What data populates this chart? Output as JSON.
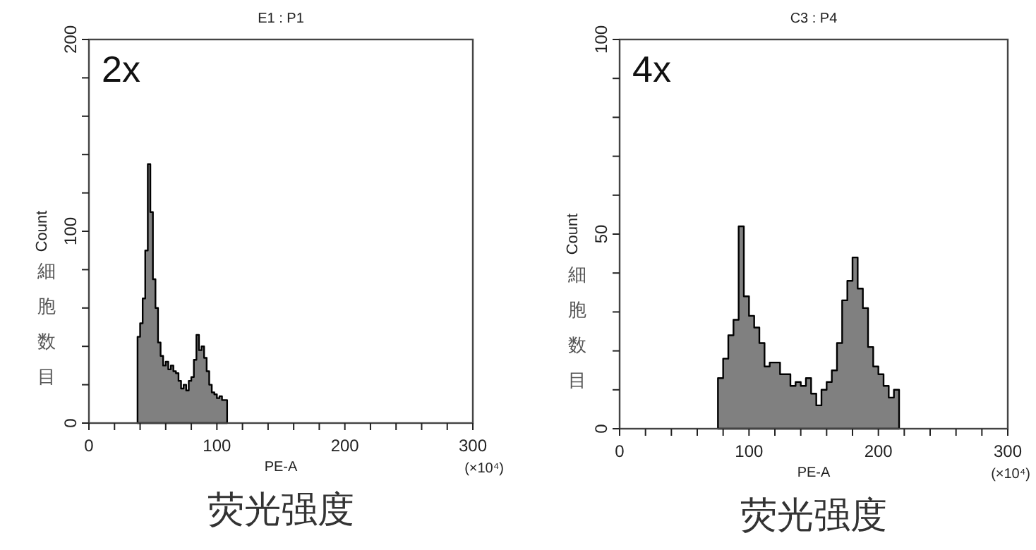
{
  "chart_data": [
    {
      "type": "histogram",
      "title": "E1 : P1",
      "xlabel": "PE-A",
      "ylabel": "Count",
      "color": "#808080",
      "bins": [
        38,
        40,
        42,
        44,
        46,
        48,
        50,
        52,
        54,
        56,
        58,
        60,
        62,
        64,
        66,
        68,
        70,
        72,
        74,
        76,
        78,
        80,
        82,
        84,
        86,
        88,
        90,
        92,
        94,
        96,
        98,
        100,
        102,
        104,
        106,
        108
      ],
      "values": [
        45,
        52,
        65,
        90,
        135,
        110,
        75,
        60,
        42,
        35,
        30,
        32,
        28,
        30,
        27,
        26,
        22,
        18,
        20,
        17,
        22,
        24,
        33,
        46,
        38,
        40,
        34,
        27,
        20,
        16,
        15,
        13,
        14,
        12,
        12
      ],
      "xlim": [
        0,
        300
      ],
      "ylim": [
        0,
        200
      ],
      "xticks": [
        0,
        {
          "value": 20,
          "label": null
        },
        {
          "value": 40,
          "label": null
        },
        {
          "value": 60,
          "label": null
        },
        {
          "value": 80,
          "label": null
        },
        100,
        {
          "value": 120,
          "label": null
        },
        {
          "value": 140,
          "label": null
        },
        {
          "value": 160,
          "label": null
        },
        {
          "value": 180,
          "label": null
        },
        200,
        {
          "value": 220,
          "label": null
        },
        {
          "value": 240,
          "label": null
        },
        {
          "value": 260,
          "label": null
        },
        {
          "value": 280,
          "label": null
        },
        300
      ],
      "yticks": [
        0,
        {
          "value": 20,
          "label": null
        },
        {
          "value": 40,
          "label": null
        },
        {
          "value": 60,
          "label": null
        },
        {
          "value": 80,
          "label": null
        },
        100,
        {
          "value": 120,
          "label": null
        },
        {
          "value": 140,
          "label": null
        },
        {
          "value": 160,
          "label": null
        },
        {
          "value": 180,
          "label": null
        },
        200
      ],
      "annotations": [
        "2x",
        "細胞数目",
        "(×10⁴)",
        "荧光强度"
      ]
    },
    {
      "type": "histogram",
      "title": "C3 : P4",
      "xlabel": "PE-A",
      "ylabel": "Count",
      "color": "#808080",
      "bins": [
        76,
        80,
        84,
        88,
        92,
        96,
        100,
        104,
        108,
        112,
        116,
        120,
        124,
        128,
        132,
        136,
        140,
        144,
        148,
        152,
        156,
        160,
        164,
        168,
        172,
        176,
        180,
        184,
        188,
        192,
        196,
        200,
        204,
        208,
        212,
        216
      ],
      "values": [
        13,
        18,
        24,
        28,
        52,
        34,
        29,
        26,
        22,
        16,
        17,
        17,
        14,
        14,
        11,
        12,
        11,
        13,
        9,
        6,
        10,
        12,
        15,
        22,
        33,
        38,
        44,
        36,
        31,
        21,
        16,
        14,
        11,
        8,
        10
      ],
      "xlim": [
        0,
        300
      ],
      "ylim": [
        0,
        100
      ],
      "xticks": [
        0,
        {
          "value": 20,
          "label": null
        },
        {
          "value": 40,
          "label": null
        },
        {
          "value": 60,
          "label": null
        },
        {
          "value": 80,
          "label": null
        },
        100,
        {
          "value": 120,
          "label": null
        },
        {
          "value": 140,
          "label": null
        },
        {
          "value": 160,
          "label": null
        },
        {
          "value": 180,
          "label": null
        },
        200,
        {
          "value": 220,
          "label": null
        },
        {
          "value": 240,
          "label": null
        },
        {
          "value": 260,
          "label": null
        },
        {
          "value": 280,
          "label": null
        },
        300
      ],
      "yticks": [
        0,
        {
          "value": 10,
          "label": null
        },
        {
          "value": 20,
          "label": null
        },
        {
          "value": 30,
          "label": null
        },
        {
          "value": 40,
          "label": null
        },
        50,
        {
          "value": 60,
          "label": null
        },
        {
          "value": 70,
          "label": null
        },
        {
          "value": 80,
          "label": null
        },
        {
          "value": 90,
          "label": null
        },
        100
      ],
      "annotations": [
        "4x",
        "細胞数目",
        "(×10⁴)",
        "荧光强度"
      ]
    }
  ]
}
